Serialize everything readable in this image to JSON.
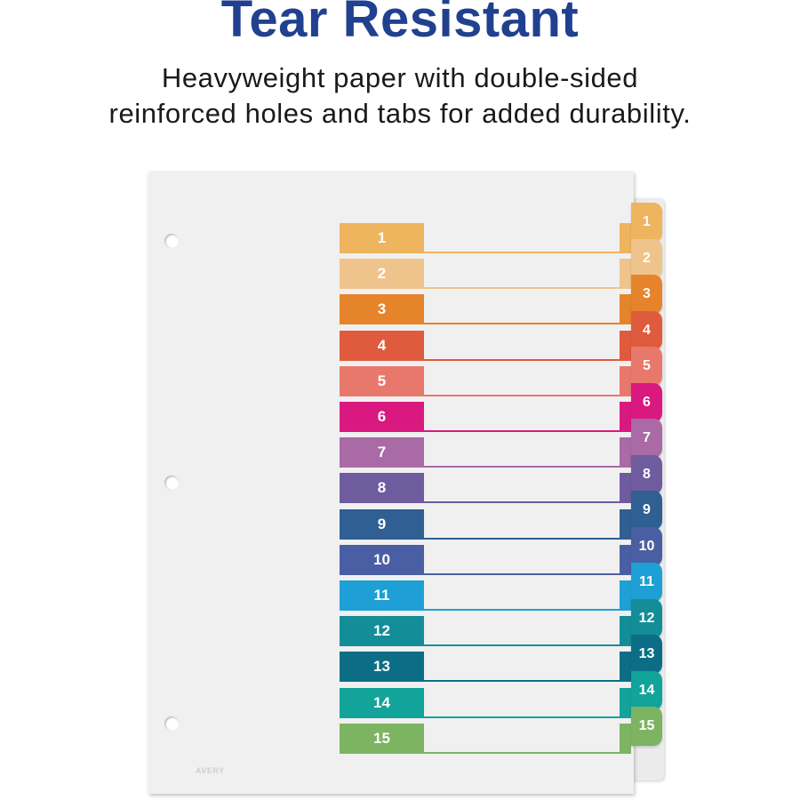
{
  "header": {
    "title": "Tear Resistant",
    "subtitle_line1": "Heavyweight paper with double-sided",
    "subtitle_line2": "reinforced holes and tabs for added durability."
  },
  "product": {
    "logo_text": "AVERY",
    "tabs": [
      {
        "label": "1",
        "color": "#eeb45e"
      },
      {
        "label": "2",
        "color": "#efc48c"
      },
      {
        "label": "3",
        "color": "#e5842b"
      },
      {
        "label": "4",
        "color": "#e05a3e"
      },
      {
        "label": "5",
        "color": "#e9786c"
      },
      {
        "label": "6",
        "color": "#d9197f"
      },
      {
        "label": "7",
        "color": "#a96aa6"
      },
      {
        "label": "8",
        "color": "#6e5c9f"
      },
      {
        "label": "9",
        "color": "#2f5f93"
      },
      {
        "label": "10",
        "color": "#4a5fa3"
      },
      {
        "label": "11",
        "color": "#1ea0d6"
      },
      {
        "label": "12",
        "color": "#138e98"
      },
      {
        "label": "13",
        "color": "#0c6e86"
      },
      {
        "label": "14",
        "color": "#12a39a"
      },
      {
        "label": "15",
        "color": "#7cb461"
      }
    ]
  }
}
